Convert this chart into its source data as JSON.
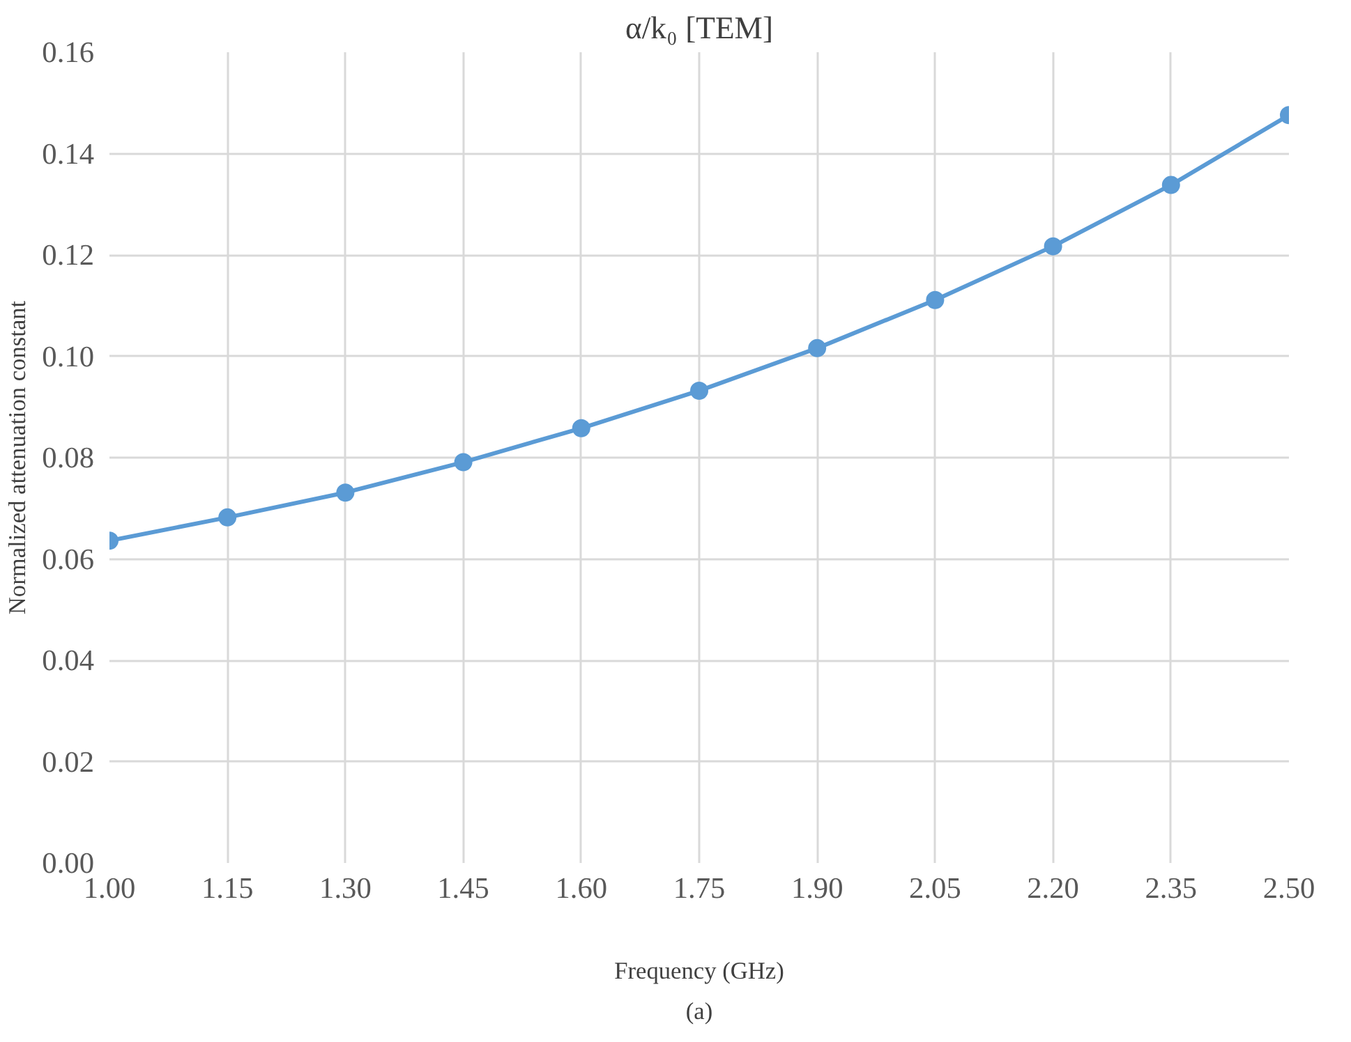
{
  "chart_data": {
    "type": "line",
    "title": "α/k₀ [TEM]",
    "xlabel": "Frequency (GHz)",
    "ylabel": "Normalized attenuation constant",
    "annotations": [
      "(a)"
    ],
    "x": [
      1.0,
      1.15,
      1.3,
      1.45,
      1.6,
      1.75,
      1.9,
      2.05,
      2.2,
      2.35,
      2.5
    ],
    "series": [
      {
        "color": "#5b9bd5",
        "values": [
          0.0636,
          0.0682,
          0.0731,
          0.0791,
          0.0858,
          0.0932,
          0.1016,
          0.1111,
          0.1217,
          0.1338,
          0.1476
        ]
      }
    ],
    "xlim": [
      1.0,
      2.5
    ],
    "ylim": [
      0,
      0.16
    ],
    "xticks": [
      {
        "value": 1.0,
        "label": "1.00"
      },
      1.15,
      {
        "value": 1.3,
        "label": "1.30"
      },
      1.45,
      {
        "value": 1.6,
        "label": "1.60"
      },
      1.75,
      {
        "value": 1.9,
        "label": "1.90"
      },
      2.05,
      {
        "value": 2.2,
        "label": "2.20"
      },
      2.35,
      {
        "value": 2.5,
        "label": "2.50"
      }
    ],
    "yticks": [
      {
        "value": 0,
        "label": "0.00"
      },
      0.02,
      0.04,
      0.06,
      0.08,
      {
        "value": 0.1,
        "label": "0.10"
      },
      0.12,
      0.14,
      0.16
    ],
    "grid": true,
    "marker": "circle",
    "line_style": "solid"
  }
}
